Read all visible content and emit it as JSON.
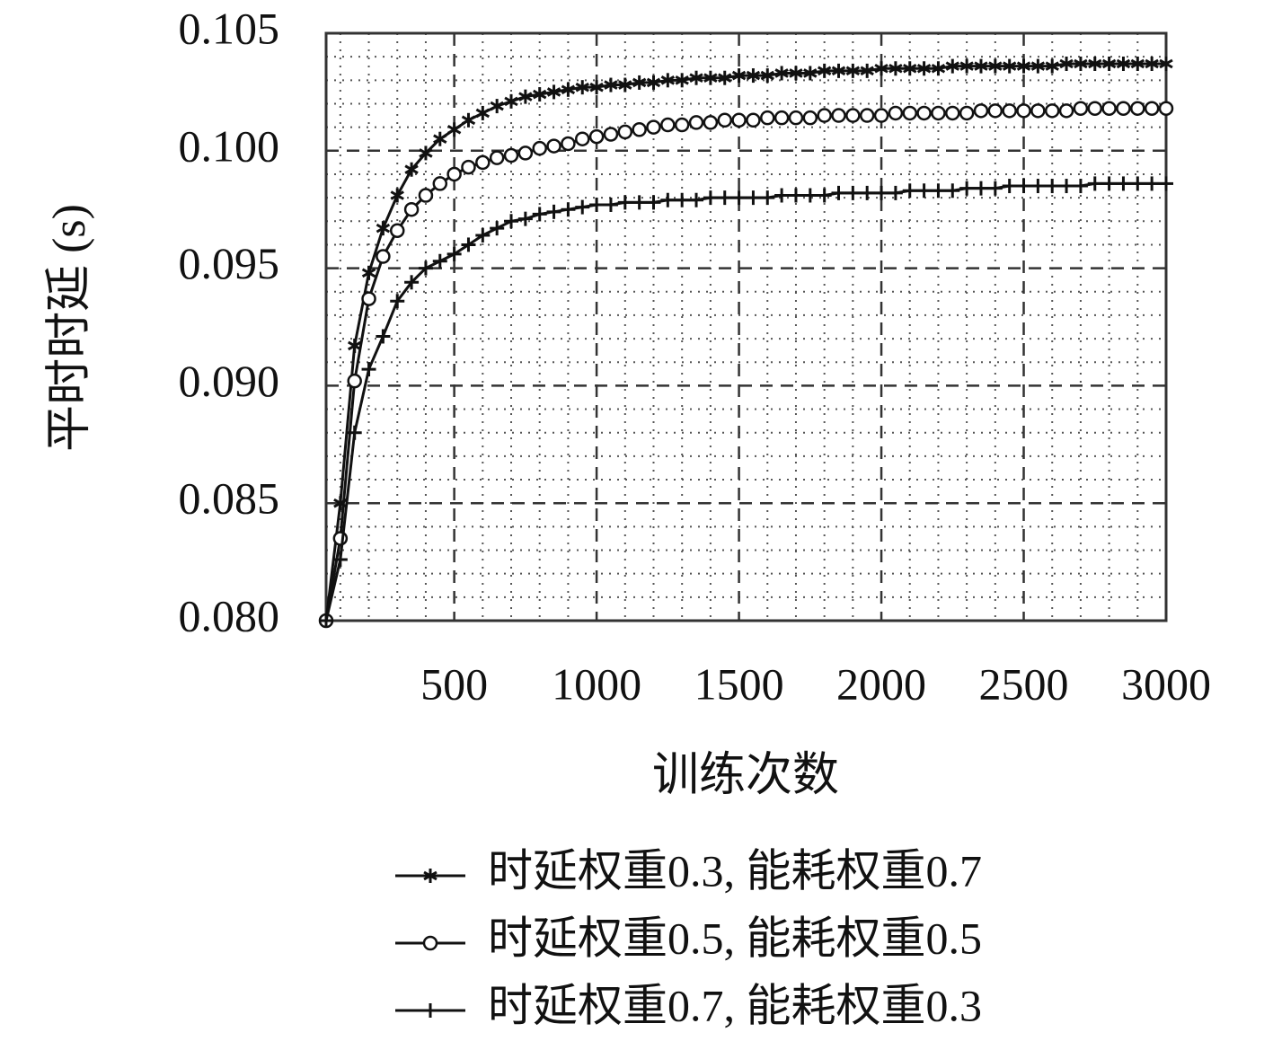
{
  "chart_data": {
    "type": "line",
    "x_label": "训练次数",
    "y_label": "平时时延 (s)",
    "x": [
      50,
      100,
      150,
      200,
      250,
      300,
      350,
      400,
      450,
      500,
      550,
      600,
      650,
      700,
      750,
      800,
      850,
      900,
      950,
      1000,
      1050,
      1100,
      1150,
      1200,
      1250,
      1300,
      1350,
      1400,
      1450,
      1500,
      1550,
      1600,
      1650,
      1700,
      1750,
      1800,
      1850,
      1900,
      1950,
      2000,
      2050,
      2100,
      2150,
      2200,
      2250,
      2300,
      2350,
      2400,
      2450,
      2500,
      2550,
      2600,
      2650,
      2700,
      2750,
      2800,
      2850,
      2900,
      2950,
      3000
    ],
    "series": [
      {
        "name": "时延权重0.3, 能耗权重0.7",
        "color": "#111111",
        "marker": "star",
        "values": [
          0.08,
          0.085,
          0.0917,
          0.0948,
          0.0967,
          0.0981,
          0.0992,
          0.0999,
          0.1005,
          0.1009,
          0.1013,
          0.1016,
          0.1019,
          0.1021,
          0.1023,
          0.1024,
          0.1025,
          0.1026,
          0.1027,
          0.1027,
          0.1028,
          0.1028,
          0.1029,
          0.1029,
          0.103,
          0.103,
          0.1031,
          0.1031,
          0.1031,
          0.1032,
          0.1032,
          0.1032,
          0.1033,
          0.1033,
          0.1033,
          0.1034,
          0.1034,
          0.1034,
          0.1034,
          0.1035,
          0.1035,
          0.1035,
          0.1035,
          0.1035,
          0.1036,
          0.1036,
          0.1036,
          0.1036,
          0.1036,
          0.1036,
          0.1036,
          0.1036,
          0.1037,
          0.1037,
          0.1037,
          0.1037,
          0.1037,
          0.1037,
          0.1037,
          0.1037
        ]
      },
      {
        "name": "时延权重0.5, 能耗权重0.5",
        "color": "#111111",
        "marker": "circle",
        "values": [
          0.08,
          0.0835,
          0.0902,
          0.0937,
          0.0955,
          0.0966,
          0.0975,
          0.0981,
          0.0986,
          0.099,
          0.0993,
          0.0995,
          0.0997,
          0.0998,
          0.0999,
          0.1001,
          0.1002,
          0.1003,
          0.1005,
          0.1006,
          0.1007,
          0.1008,
          0.1009,
          0.101,
          0.1011,
          0.1011,
          0.1012,
          0.1012,
          0.1013,
          0.1013,
          0.1013,
          0.1014,
          0.1014,
          0.1014,
          0.1014,
          0.1015,
          0.1015,
          0.1015,
          0.1015,
          0.1015,
          0.1016,
          0.1016,
          0.1016,
          0.1016,
          0.1016,
          0.1016,
          0.1017,
          0.1017,
          0.1017,
          0.1017,
          0.1017,
          0.1017,
          0.1017,
          0.1018,
          0.1018,
          0.1018,
          0.1018,
          0.1018,
          0.1018,
          0.1018
        ]
      },
      {
        "name": "时延权重0.7, 能耗权重0.3",
        "color": "#111111",
        "marker": "plus",
        "values": [
          0.08,
          0.0826,
          0.088,
          0.0907,
          0.0921,
          0.0936,
          0.0944,
          0.095,
          0.0953,
          0.0956,
          0.096,
          0.0964,
          0.0967,
          0.097,
          0.0971,
          0.0973,
          0.0974,
          0.0975,
          0.0976,
          0.0977,
          0.0977,
          0.0978,
          0.0978,
          0.0978,
          0.0979,
          0.0979,
          0.0979,
          0.098,
          0.098,
          0.098,
          0.098,
          0.098,
          0.0981,
          0.0981,
          0.0981,
          0.0981,
          0.0982,
          0.0982,
          0.0982,
          0.0982,
          0.0982,
          0.0983,
          0.0983,
          0.0983,
          0.0983,
          0.0984,
          0.0984,
          0.0984,
          0.0985,
          0.0985,
          0.0985,
          0.0985,
          0.0985,
          0.0985,
          0.0986,
          0.0986,
          0.0986,
          0.0986,
          0.0986,
          0.0986
        ]
      }
    ],
    "xlim": [
      50,
      3000
    ],
    "xticks": [
      500,
      1000,
      1500,
      2000,
      2500,
      3000
    ],
    "ylim": [
      0.08,
      0.105
    ],
    "yticks": [
      {
        "value": 0.08,
        "label": "0.080"
      },
      0.085,
      {
        "value": 0.09,
        "label": "0.090"
      },
      0.095,
      {
        "value": 0.1,
        "label": "0.100"
      },
      0.105
    ],
    "grid": true,
    "minor_grid": true,
    "legend_position": "below"
  }
}
